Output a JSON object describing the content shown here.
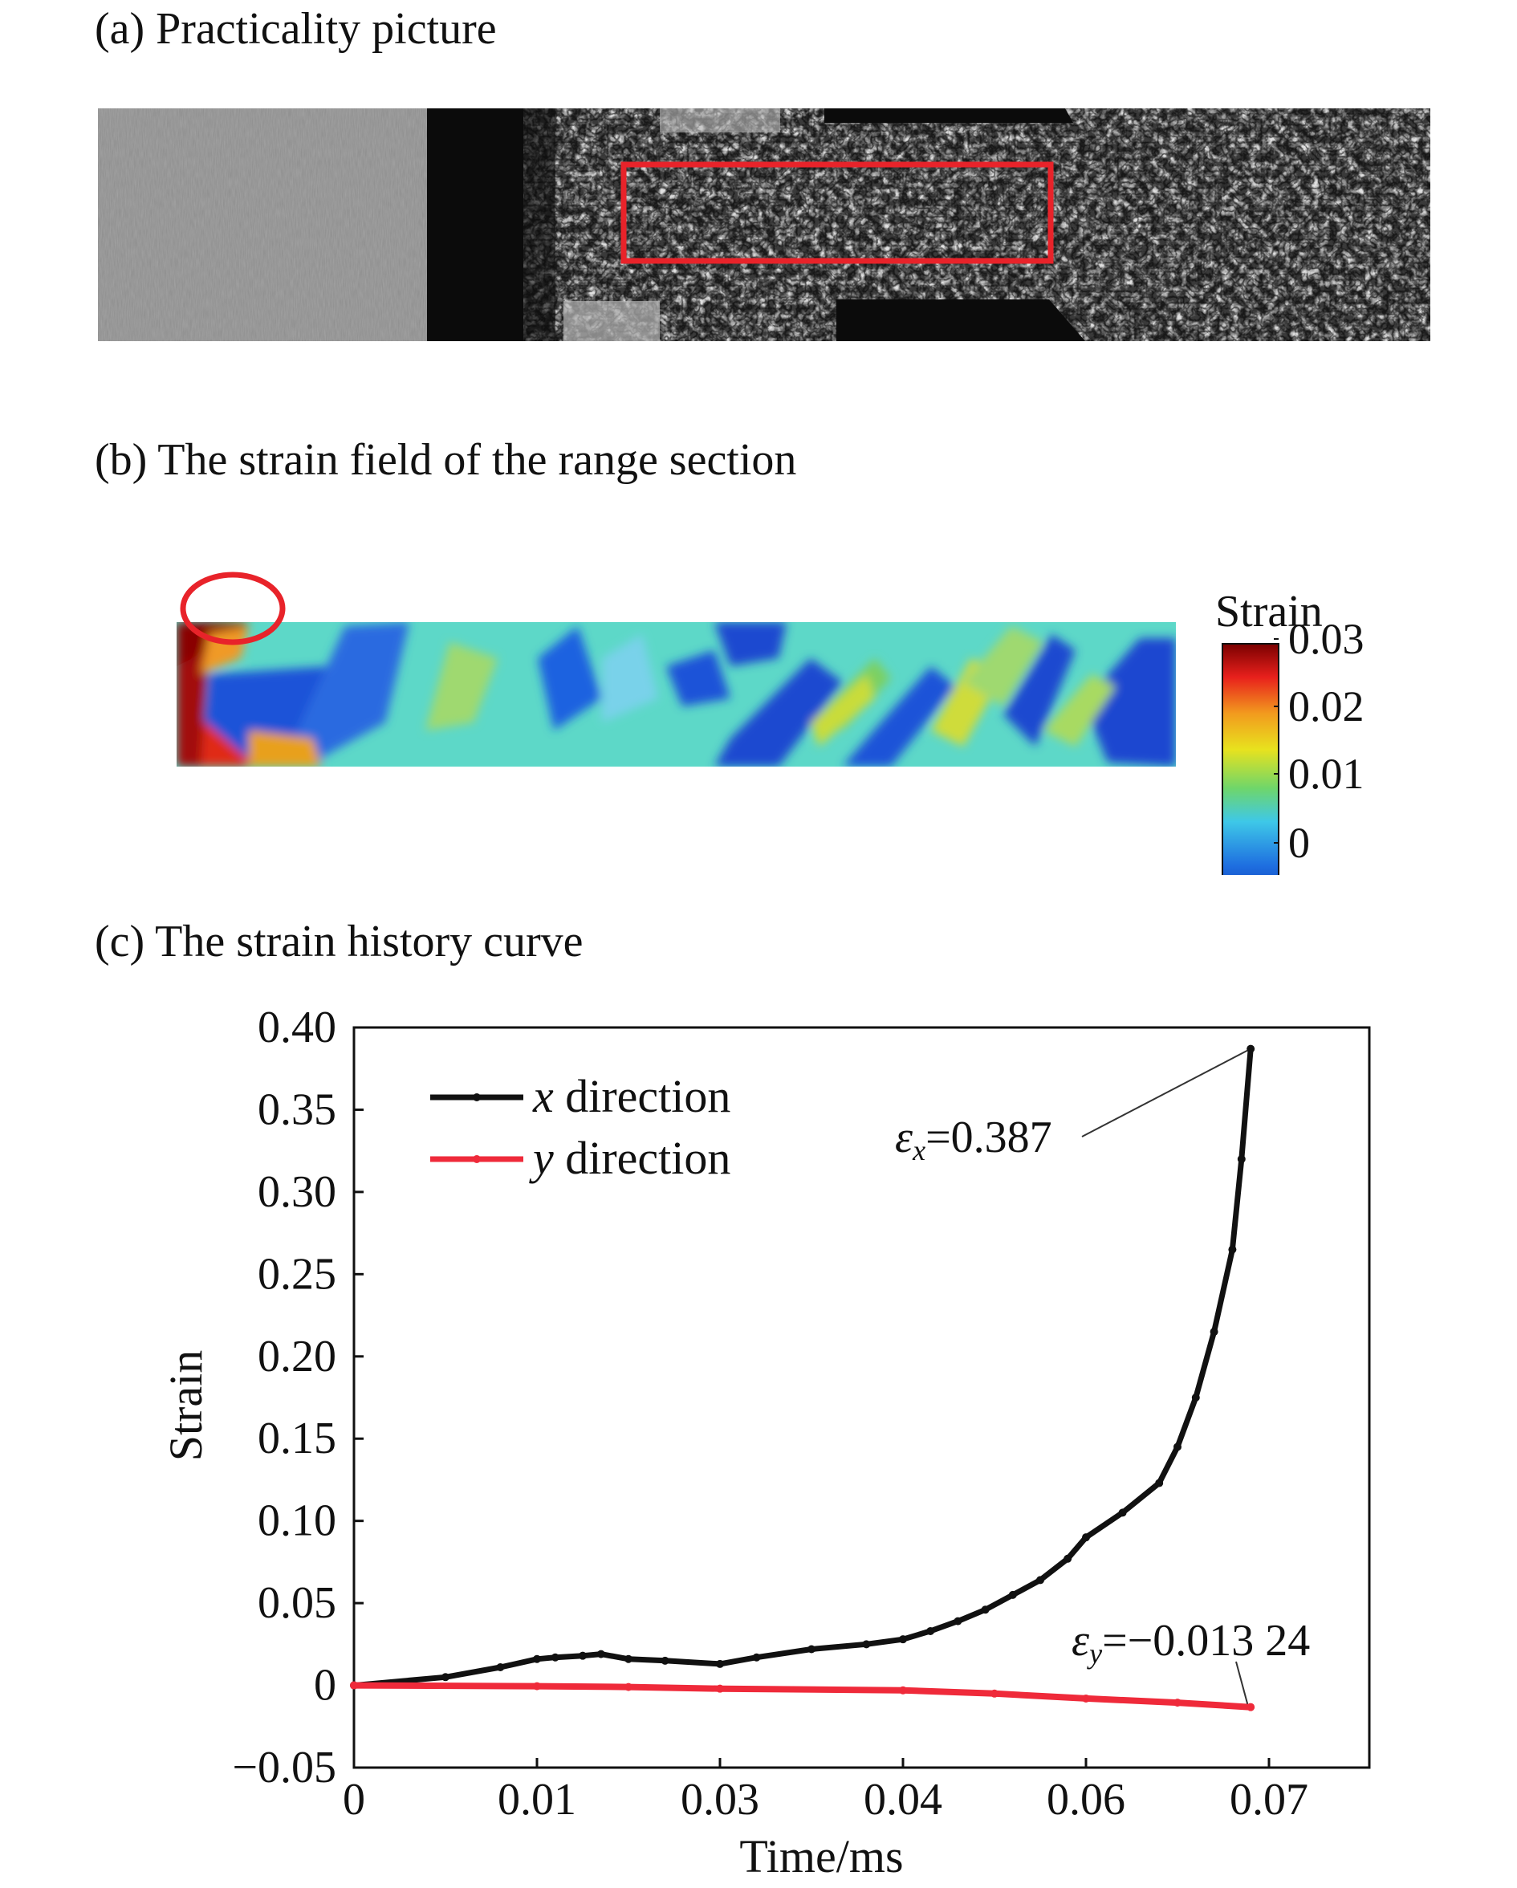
{
  "panels": {
    "a_title": "(a) Practicality picture",
    "b_title": "(b) The strain field of the range section",
    "c_title": "(c) The strain history curve"
  },
  "strain_field": {
    "colorbar_title": "Strain",
    "colorbar_ticks": [
      "0.03",
      "0.02",
      "0.01",
      "0"
    ],
    "colorbar_colors": [
      "#7a0000",
      "#e8201c",
      "#f29a1e",
      "#e8e21e",
      "#6fd66a",
      "#3ec8e8",
      "#1e6ee0",
      "#0a1c9a"
    ],
    "highlight_color": "#e8232a"
  },
  "chart_data": {
    "type": "line",
    "xlabel": "Time/ms",
    "ylabel": "Strain",
    "x_ticks": [
      "0",
      "0.01",
      "0.03",
      "0.04",
      "0.06",
      "0.07"
    ],
    "y_ticks": [
      "0.40",
      "0.35",
      "0.30",
      "0.25",
      "0.20",
      "0.15",
      "0.10",
      "0.05",
      "0",
      "−0.05"
    ],
    "ylim": [
      -0.05,
      0.4
    ],
    "grid": false,
    "legend_position": "top-left",
    "series": [
      {
        "name": "x direction",
        "name_var": "x",
        "name_rest": " direction",
        "color": "#111111",
        "points": [
          [
            0,
            0
          ],
          [
            0.005,
            0.005
          ],
          [
            0.008,
            0.011
          ],
          [
            0.01,
            0.016
          ],
          [
            0.012,
            0.017
          ],
          [
            0.015,
            0.018
          ],
          [
            0.017,
            0.019
          ],
          [
            0.02,
            0.016
          ],
          [
            0.024,
            0.015
          ],
          [
            0.03,
            0.013
          ],
          [
            0.032,
            0.017
          ],
          [
            0.035,
            0.022
          ],
          [
            0.038,
            0.025
          ],
          [
            0.04,
            0.028
          ],
          [
            0.043,
            0.033
          ],
          [
            0.046,
            0.039
          ],
          [
            0.049,
            0.046
          ],
          [
            0.052,
            0.055
          ],
          [
            0.055,
            0.064
          ],
          [
            0.058,
            0.077
          ],
          [
            0.06,
            0.09
          ],
          [
            0.062,
            0.105
          ],
          [
            0.064,
            0.123
          ],
          [
            0.065,
            0.145
          ],
          [
            0.066,
            0.175
          ],
          [
            0.067,
            0.215
          ],
          [
            0.068,
            0.265
          ],
          [
            0.0685,
            0.32
          ],
          [
            0.069,
            0.387
          ]
        ]
      },
      {
        "name": "y direction",
        "name_var": "y",
        "name_rest": " direction",
        "color": "#ef2a3a",
        "points": [
          [
            0,
            0
          ],
          [
            0.01,
            -0.0005
          ],
          [
            0.02,
            -0.001
          ],
          [
            0.03,
            -0.002
          ],
          [
            0.04,
            -0.003
          ],
          [
            0.05,
            -0.005
          ],
          [
            0.06,
            -0.008
          ],
          [
            0.065,
            -0.0105
          ],
          [
            0.069,
            -0.01324
          ]
        ]
      }
    ],
    "annotations": [
      {
        "sym": "ε",
        "sub": "x",
        "value": "=0.387"
      },
      {
        "sym": "ε",
        "sub": "y",
        "value": "=−0.013 24"
      }
    ]
  }
}
